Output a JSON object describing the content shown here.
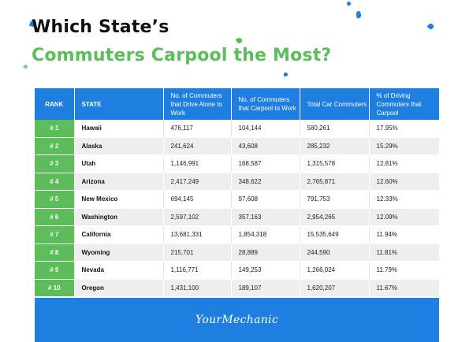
{
  "title": {
    "line1": "Which State’s",
    "line2": "Commuters Carpool the Most?"
  },
  "table": {
    "headers": [
      "RANK",
      "STATE",
      "No. of Commuters that Drive Alone to Work",
      "No. of Commuters that Carpool to Work",
      "Total Car Commuters",
      "% of Driving Commuters that Carpool"
    ],
    "rows": [
      {
        "rank": "# 1",
        "state": "Hawaii",
        "alone": "476,117",
        "carpool": "104,144",
        "total": "580,261",
        "pct": "17.95%"
      },
      {
        "rank": "# 2",
        "state": "Alaska",
        "alone": "241,624",
        "carpool": "43,608",
        "total": "285,232",
        "pct": "15.29%"
      },
      {
        "rank": "# 3",
        "state": "Utah",
        "alone": "1,146,991",
        "carpool": "168,587",
        "total": "1,315,578",
        "pct": "12.81%"
      },
      {
        "rank": "# 4",
        "state": "Arizona",
        "alone": "2,417,249",
        "carpool": "348,622",
        "total": "2,765,871",
        "pct": "12.60%"
      },
      {
        "rank": "# 5",
        "state": "New Mexico",
        "alone": "694,145",
        "carpool": "97,608",
        "total": "791,753",
        "pct": "12.33%"
      },
      {
        "rank": "# 6",
        "state": "Washington",
        "alone": "2,597,102",
        "carpool": "357,163",
        "total": "2,954,265",
        "pct": "12.09%"
      },
      {
        "rank": "# 7",
        "state": "California",
        "alone": "13,681,331",
        "carpool": "1,854,318",
        "total": "15,535,649",
        "pct": "11.94%"
      },
      {
        "rank": "# 8",
        "state": "Wyoming",
        "alone": "215,701",
        "carpool": "28,889",
        "total": "244,590",
        "pct": "11.81%"
      },
      {
        "rank": "# 9",
        "state": "Nevada",
        "alone": "1,116,771",
        "carpool": "149,253",
        "total": "1,266,024",
        "pct": "11.79%"
      },
      {
        "rank": "# 10",
        "state": "Oregon",
        "alone": "1,431,100",
        "carpool": "189,107",
        "total": "1,620,207",
        "pct": "11.67%"
      }
    ]
  },
  "footer": {
    "brand": "YourMechanic"
  },
  "colors": {
    "accent_blue": "#1f7fe0",
    "accent_green": "#5cbd5a"
  }
}
